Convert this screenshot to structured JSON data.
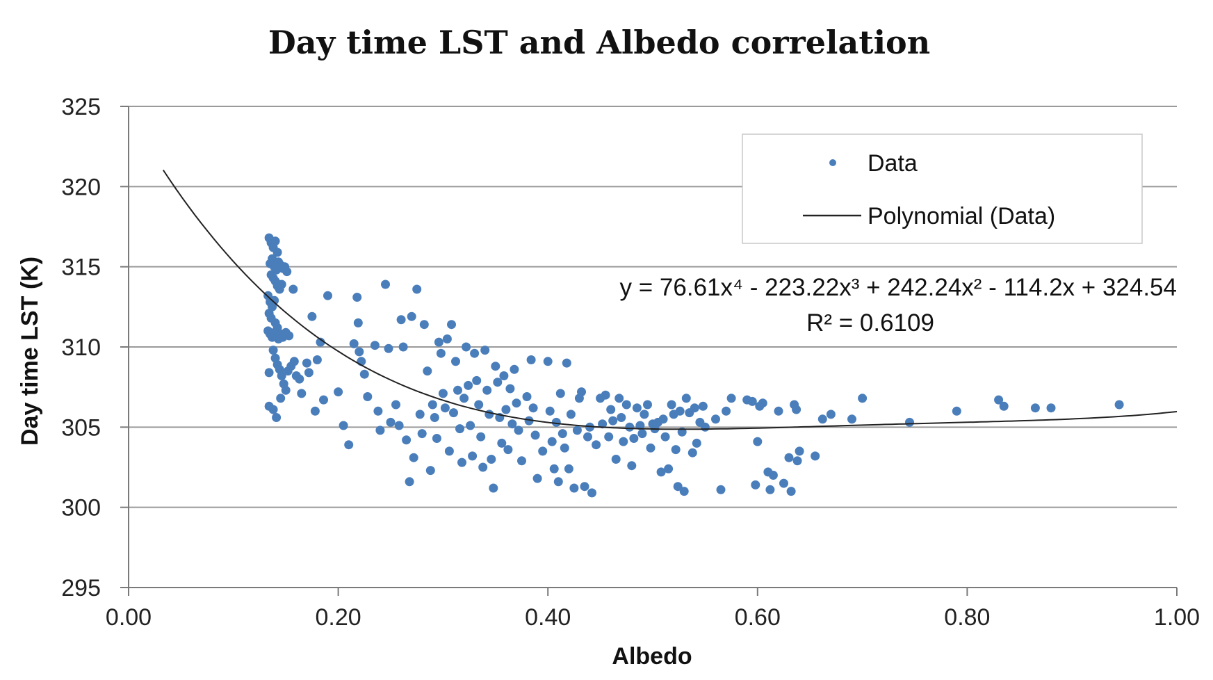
{
  "chart_data": {
    "type": "scatter",
    "title": "Day time LST and Albedo correlation",
    "xlabel": "Albedo",
    "ylabel": "Day time LST (K)",
    "xlim": [
      0.0,
      1.0
    ],
    "ylim": [
      295,
      325
    ],
    "x_ticks": [
      "0.00",
      "0.20",
      "0.40",
      "0.60",
      "0.80",
      "1.00"
    ],
    "y_ticks": [
      "295",
      "300",
      "305",
      "310",
      "315",
      "320",
      "325"
    ],
    "grid": true,
    "legend_position": "top-right",
    "legend": {
      "series_label": "Data",
      "trend_label": "Polynomial (Data)"
    },
    "trendline": {
      "type": "polynomial",
      "order": 4,
      "coefficients": [
        76.61,
        -223.22,
        242.24,
        -114.2,
        324.54
      ],
      "x_range": [
        0.033,
        1.0
      ],
      "equation_label": "y = 76.61x⁴ - 223.22x³ + 242.24x² - 114.2x + 324.54",
      "r2_label": "R² = 0.6109"
    },
    "colors": {
      "points": "#4a7ebb",
      "trendline": "#222222",
      "grid": "#9a9a9a"
    },
    "series": [
      {
        "name": "Data",
        "points": [
          [
            0.134,
            316.8
          ],
          [
            0.136,
            316.5
          ],
          [
            0.138,
            316.2
          ],
          [
            0.14,
            316.6
          ],
          [
            0.142,
            315.9
          ],
          [
            0.137,
            315.5
          ],
          [
            0.135,
            315.2
          ],
          [
            0.139,
            315.0
          ],
          [
            0.141,
            314.8
          ],
          [
            0.143,
            315.3
          ],
          [
            0.145,
            315.1
          ],
          [
            0.147,
            314.9
          ],
          [
            0.149,
            315.0
          ],
          [
            0.151,
            314.7
          ],
          [
            0.136,
            314.5
          ],
          [
            0.138,
            314.3
          ],
          [
            0.14,
            314.1
          ],
          [
            0.142,
            313.8
          ],
          [
            0.144,
            313.6
          ],
          [
            0.146,
            313.9
          ],
          [
            0.133,
            313.2
          ],
          [
            0.135,
            312.8
          ],
          [
            0.137,
            312.5
          ],
          [
            0.139,
            312.9
          ],
          [
            0.134,
            312.1
          ],
          [
            0.136,
            311.8
          ],
          [
            0.14,
            311.5
          ],
          [
            0.142,
            311.2
          ],
          [
            0.133,
            311.0
          ],
          [
            0.135,
            310.8
          ],
          [
            0.137,
            310.6
          ],
          [
            0.139,
            310.9
          ],
          [
            0.141,
            310.7
          ],
          [
            0.143,
            310.5
          ],
          [
            0.145,
            310.8
          ],
          [
            0.147,
            310.6
          ],
          [
            0.15,
            310.9
          ],
          [
            0.153,
            310.7
          ],
          [
            0.138,
            309.8
          ],
          [
            0.14,
            309.3
          ],
          [
            0.142,
            308.9
          ],
          [
            0.144,
            308.6
          ],
          [
            0.134,
            308.4
          ],
          [
            0.146,
            308.2
          ],
          [
            0.148,
            307.7
          ],
          [
            0.152,
            308.5
          ],
          [
            0.155,
            308.8
          ],
          [
            0.158,
            309.1
          ],
          [
            0.16,
            308.2
          ],
          [
            0.163,
            308.0
          ],
          [
            0.134,
            306.3
          ],
          [
            0.138,
            306.1
          ],
          [
            0.141,
            305.6
          ],
          [
            0.145,
            306.8
          ],
          [
            0.15,
            307.3
          ],
          [
            0.157,
            313.6
          ],
          [
            0.175,
            311.9
          ],
          [
            0.183,
            310.3
          ],
          [
            0.17,
            309.0
          ],
          [
            0.18,
            309.2
          ],
          [
            0.172,
            308.4
          ],
          [
            0.165,
            307.1
          ],
          [
            0.178,
            306.0
          ],
          [
            0.186,
            306.7
          ],
          [
            0.19,
            313.2
          ],
          [
            0.2,
            307.2
          ],
          [
            0.205,
            305.1
          ],
          [
            0.21,
            303.9
          ],
          [
            0.215,
            310.2
          ],
          [
            0.218,
            313.1
          ],
          [
            0.219,
            311.5
          ],
          [
            0.22,
            309.7
          ],
          [
            0.222,
            309.1
          ],
          [
            0.225,
            308.3
          ],
          [
            0.228,
            306.9
          ],
          [
            0.235,
            310.1
          ],
          [
            0.238,
            306.0
          ],
          [
            0.24,
            304.8
          ],
          [
            0.245,
            313.9
          ],
          [
            0.248,
            309.9
          ],
          [
            0.25,
            305.3
          ],
          [
            0.255,
            306.4
          ],
          [
            0.258,
            305.1
          ],
          [
            0.26,
            311.7
          ],
          [
            0.262,
            310.0
          ],
          [
            0.265,
            304.2
          ],
          [
            0.268,
            301.6
          ],
          [
            0.27,
            311.9
          ],
          [
            0.272,
            303.1
          ],
          [
            0.275,
            313.6
          ],
          [
            0.278,
            305.8
          ],
          [
            0.28,
            304.6
          ],
          [
            0.282,
            311.4
          ],
          [
            0.285,
            308.5
          ],
          [
            0.288,
            302.3
          ],
          [
            0.29,
            306.4
          ],
          [
            0.292,
            305.6
          ],
          [
            0.294,
            304.3
          ],
          [
            0.296,
            310.3
          ],
          [
            0.298,
            309.6
          ],
          [
            0.3,
            307.1
          ],
          [
            0.302,
            306.2
          ],
          [
            0.304,
            310.5
          ],
          [
            0.306,
            303.5
          ],
          [
            0.308,
            311.4
          ],
          [
            0.31,
            305.9
          ],
          [
            0.312,
            309.1
          ],
          [
            0.314,
            307.3
          ],
          [
            0.316,
            304.9
          ],
          [
            0.318,
            302.8
          ],
          [
            0.32,
            306.8
          ],
          [
            0.322,
            310.0
          ],
          [
            0.324,
            307.6
          ],
          [
            0.326,
            305.1
          ],
          [
            0.328,
            303.2
          ],
          [
            0.33,
            309.6
          ],
          [
            0.332,
            307.9
          ],
          [
            0.334,
            306.4
          ],
          [
            0.336,
            304.4
          ],
          [
            0.338,
            302.5
          ],
          [
            0.34,
            309.8
          ],
          [
            0.342,
            307.3
          ],
          [
            0.344,
            305.8
          ],
          [
            0.346,
            303.0
          ],
          [
            0.348,
            301.2
          ],
          [
            0.35,
            308.8
          ],
          [
            0.352,
            307.8
          ],
          [
            0.354,
            305.6
          ],
          [
            0.356,
            304.0
          ],
          [
            0.358,
            308.2
          ],
          [
            0.36,
            306.1
          ],
          [
            0.362,
            303.6
          ],
          [
            0.364,
            307.4
          ],
          [
            0.366,
            305.2
          ],
          [
            0.368,
            308.6
          ],
          [
            0.37,
            306.5
          ],
          [
            0.372,
            304.8
          ],
          [
            0.375,
            302.9
          ],
          [
            0.38,
            306.9
          ],
          [
            0.382,
            305.4
          ],
          [
            0.384,
            309.2
          ],
          [
            0.386,
            306.2
          ],
          [
            0.388,
            304.5
          ],
          [
            0.39,
            301.8
          ],
          [
            0.395,
            303.5
          ],
          [
            0.4,
            309.1
          ],
          [
            0.402,
            306.0
          ],
          [
            0.404,
            304.1
          ],
          [
            0.406,
            302.4
          ],
          [
            0.408,
            305.3
          ],
          [
            0.41,
            301.6
          ],
          [
            0.412,
            307.1
          ],
          [
            0.414,
            304.6
          ],
          [
            0.416,
            303.7
          ],
          [
            0.418,
            309.0
          ],
          [
            0.42,
            302.4
          ],
          [
            0.422,
            305.8
          ],
          [
            0.425,
            301.2
          ],
          [
            0.428,
            304.8
          ],
          [
            0.43,
            306.8
          ],
          [
            0.432,
            307.2
          ],
          [
            0.435,
            301.3
          ],
          [
            0.438,
            304.4
          ],
          [
            0.44,
            305.0
          ],
          [
            0.442,
            300.9
          ],
          [
            0.446,
            303.9
          ],
          [
            0.45,
            306.8
          ],
          [
            0.452,
            305.2
          ],
          [
            0.455,
            307.0
          ],
          [
            0.458,
            304.4
          ],
          [
            0.46,
            306.1
          ],
          [
            0.462,
            305.4
          ],
          [
            0.465,
            303.0
          ],
          [
            0.468,
            306.8
          ],
          [
            0.47,
            305.6
          ],
          [
            0.472,
            304.1
          ],
          [
            0.475,
            306.4
          ],
          [
            0.478,
            305.0
          ],
          [
            0.48,
            302.6
          ],
          [
            0.482,
            304.3
          ],
          [
            0.485,
            306.2
          ],
          [
            0.488,
            305.1
          ],
          [
            0.49,
            304.6
          ],
          [
            0.492,
            305.8
          ],
          [
            0.495,
            306.4
          ],
          [
            0.498,
            303.7
          ],
          [
            0.5,
            305.2
          ],
          [
            0.502,
            304.9
          ],
          [
            0.505,
            305.3
          ],
          [
            0.508,
            302.2
          ],
          [
            0.51,
            305.5
          ],
          [
            0.512,
            304.4
          ],
          [
            0.515,
            302.4
          ],
          [
            0.518,
            306.4
          ],
          [
            0.52,
            305.8
          ],
          [
            0.522,
            303.6
          ],
          [
            0.524,
            301.3
          ],
          [
            0.526,
            306.0
          ],
          [
            0.528,
            304.7
          ],
          [
            0.53,
            301.0
          ],
          [
            0.532,
            306.8
          ],
          [
            0.535,
            305.9
          ],
          [
            0.538,
            303.4
          ],
          [
            0.54,
            306.2
          ],
          [
            0.542,
            304.0
          ],
          [
            0.545,
            305.3
          ],
          [
            0.548,
            306.3
          ],
          [
            0.55,
            305.0
          ],
          [
            0.56,
            305.5
          ],
          [
            0.565,
            301.1
          ],
          [
            0.57,
            306.0
          ],
          [
            0.575,
            306.8
          ],
          [
            0.59,
            306.7
          ],
          [
            0.595,
            306.6
          ],
          [
            0.598,
            301.4
          ],
          [
            0.6,
            304.1
          ],
          [
            0.602,
            306.3
          ],
          [
            0.605,
            306.5
          ],
          [
            0.61,
            302.2
          ],
          [
            0.612,
            301.1
          ],
          [
            0.615,
            302.0
          ],
          [
            0.62,
            306.0
          ],
          [
            0.625,
            301.5
          ],
          [
            0.63,
            303.1
          ],
          [
            0.632,
            301.0
          ],
          [
            0.635,
            306.4
          ],
          [
            0.637,
            306.1
          ],
          [
            0.638,
            302.9
          ],
          [
            0.64,
            303.5
          ],
          [
            0.655,
            303.2
          ],
          [
            0.662,
            305.5
          ],
          [
            0.67,
            305.8
          ],
          [
            0.69,
            305.5
          ],
          [
            0.7,
            306.8
          ],
          [
            0.745,
            305.3
          ],
          [
            0.79,
            306.0
          ],
          [
            0.83,
            306.7
          ],
          [
            0.835,
            306.3
          ],
          [
            0.865,
            306.2
          ],
          [
            0.88,
            306.2
          ],
          [
            0.945,
            306.4
          ]
        ]
      }
    ]
  }
}
